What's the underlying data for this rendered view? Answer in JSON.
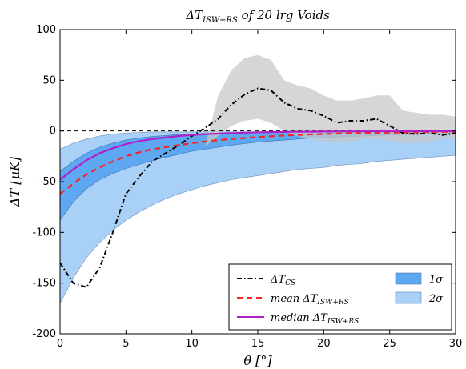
{
  "chart_data": {
    "type": "line",
    "title": "ΔT_ISW+RS of 20 lrg Voids",
    "xlabel": "θ [°]",
    "ylabel": "ΔT [μK]",
    "xlim": [
      0,
      30
    ],
    "ylim": [
      -200,
      100
    ],
    "xticks": [
      0,
      5,
      10,
      15,
      20,
      25,
      30
    ],
    "yticks": [
      -200,
      -150,
      -100,
      -50,
      0,
      50,
      100
    ],
    "x": [
      0,
      1,
      2,
      3,
      4,
      5,
      6,
      7,
      8,
      9,
      10,
      11,
      12,
      13,
      14,
      15,
      16,
      17,
      18,
      19,
      20,
      21,
      22,
      23,
      24,
      25,
      26,
      27,
      28,
      29,
      30
    ],
    "zero_line": 0,
    "series": [
      {
        "name": "ΔT_CS",
        "style": "dashdot",
        "color": "#000000",
        "values": [
          -130,
          -150,
          -154,
          -135,
          -100,
          -62,
          -45,
          -30,
          -22,
          -14,
          -5,
          3,
          12,
          26,
          36,
          42,
          40,
          28,
          22,
          20,
          15,
          8,
          10,
          10,
          12,
          5,
          -2,
          -3,
          -2,
          -4,
          -2
        ]
      },
      {
        "name": "mean ΔT_ISW+RS",
        "style": "dashed",
        "color": "#ff2020",
        "values": [
          -62,
          -52,
          -43,
          -36,
          -30,
          -25,
          -21,
          -18,
          -16,
          -14,
          -12,
          -10.5,
          -9,
          -8,
          -7,
          -6,
          -5.2,
          -4.5,
          -4,
          -3.4,
          -3,
          -2.6,
          -2.2,
          -2,
          -1.8,
          -1.6,
          -1.4,
          -1.2,
          -1,
          -0.9,
          -0.8
        ]
      },
      {
        "name": "median ΔT_ISW+RS",
        "style": "solid",
        "color": "#b020c8",
        "values": [
          -48,
          -38,
          -29,
          -22,
          -17,
          -13,
          -10,
          -8,
          -6.5,
          -5,
          -4,
          -3.2,
          -2.6,
          -2.1,
          -1.7,
          -1.4,
          -1.1,
          -0.9,
          -0.8,
          -0.7,
          -0.6,
          -0.5,
          -0.4,
          -0.4,
          -0.3,
          -0.3,
          -0.2,
          -0.2,
          -0.2,
          -0.2,
          -0.2
        ]
      }
    ],
    "bands": [
      {
        "name": "1σ",
        "color": "#5ea8f2",
        "lower": [
          -88,
          -70,
          -57,
          -48,
          -42,
          -37,
          -33,
          -29,
          -26,
          -23,
          -20,
          -18,
          -16,
          -14,
          -12.5,
          -11,
          -10,
          -9,
          -8,
          -7,
          -6.5,
          -6,
          -5.5,
          -5,
          -4.5,
          -4,
          -3.8,
          -3.5,
          -3.2,
          -3,
          -2.8
        ],
        "upper": [
          -40,
          -30,
          -22,
          -16,
          -12,
          -9,
          -7,
          -5.5,
          -4.5,
          -3.5,
          -3,
          -2.5,
          -2.2,
          -2,
          -1.8,
          -1.6,
          -1.5,
          -1.4,
          -1.3,
          -1.2,
          -1.1,
          -1,
          -1,
          -1,
          -1,
          -1,
          -1,
          -1,
          -1,
          -1,
          -1
        ]
      },
      {
        "name": "2σ",
        "color": "#a9d0f7",
        "lower": [
          -170,
          -145,
          -125,
          -110,
          -98,
          -88,
          -80,
          -73,
          -67,
          -62,
          -58,
          -54,
          -51,
          -48,
          -46,
          -44,
          -42,
          -40,
          -38,
          -37,
          -36,
          -34,
          -33,
          -32,
          -30,
          -29,
          -28,
          -27,
          -26,
          -25,
          -24
        ],
        "upper": [
          -18,
          -12,
          -8,
          -5,
          -3,
          -2,
          -1.5,
          -1,
          -1,
          -1,
          -1,
          -1,
          -1,
          -1,
          -1,
          -1,
          -1,
          -1,
          -1,
          -1,
          -1,
          -1,
          -1,
          -1,
          -1,
          -1,
          -1,
          -1,
          -1,
          -1,
          -1
        ]
      },
      {
        "name": "cs-range",
        "color": "#c8c8c8",
        "lower": [
          -200,
          -200,
          -200,
          -190,
          -165,
          -135,
          -100,
          -70,
          -50,
          -35,
          -25,
          -15,
          -5,
          5,
          10,
          12,
          8,
          0,
          -5,
          -8,
          -10,
          -12,
          -10,
          -8,
          -8,
          -10,
          -12,
          -12,
          -10,
          -8,
          -8
        ],
        "upper": [
          -200,
          -200,
          -200,
          -190,
          -165,
          -135,
          -100,
          -70,
          -50,
          -35,
          -25,
          -15,
          35,
          60,
          72,
          75,
          70,
          50,
          45,
          42,
          35,
          30,
          30,
          32,
          35,
          35,
          20,
          18,
          16,
          16,
          14
        ]
      }
    ],
    "legend": {
      "placement": "bottom-right",
      "entries": [
        {
          "label": "ΔT_CS",
          "kind": "line",
          "style": "dashdot",
          "color": "#000000"
        },
        {
          "label": "mean ΔT_ISW+RS",
          "kind": "line",
          "style": "dashed",
          "color": "#ff2020"
        },
        {
          "label": "median ΔT_ISW+RS",
          "kind": "line",
          "style": "solid",
          "color": "#b020c8"
        },
        {
          "label": "1σ",
          "kind": "patch",
          "color": "#5ea8f2"
        },
        {
          "label": "2σ",
          "kind": "patch",
          "color": "#a9d0f7"
        }
      ]
    },
    "grid": false
  }
}
